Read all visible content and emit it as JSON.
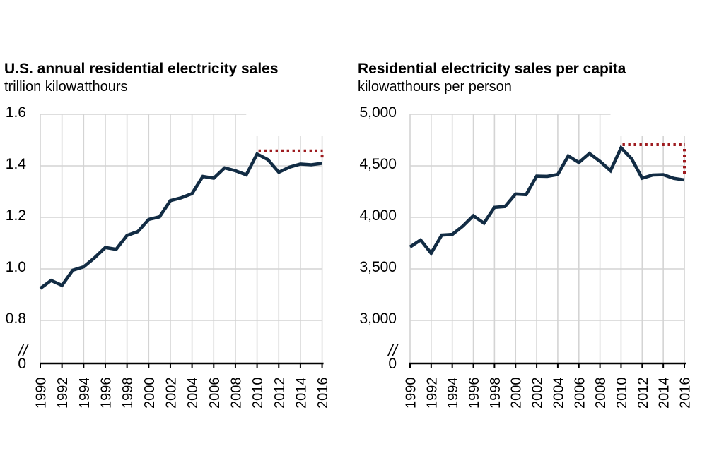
{
  "page": {
    "background_color": "#ffffff"
  },
  "colors": {
    "line": "#122c44",
    "annotation_dotted": "#9e1b1f",
    "grid": "#d4d4d4",
    "axis": "#000000",
    "text": "#000000"
  },
  "chart_data": [
    {
      "type": "line",
      "title": "U.S. annual residential electricity sales",
      "subtitle": "trillion kilowatthours",
      "xlabel": "",
      "ylabel": "trillion kilowatthours",
      "legend": "none",
      "grid": true,
      "ylim_display": [
        0.8,
        1.6
      ],
      "axis_break_symbol": "//",
      "y_zero_label": "0",
      "y_tick_values": [
        1.6,
        1.4,
        1.2,
        1.0,
        0.8
      ],
      "y_tick_labels": [
        "1.6",
        "1.4",
        "1.2",
        "1.0",
        "0.8"
      ],
      "x_tick_years": [
        1990,
        1992,
        1994,
        1996,
        1998,
        2000,
        2002,
        2004,
        2006,
        2008,
        2010,
        2012,
        2014,
        2016
      ],
      "x_tick_labels": [
        "1990",
        "1992",
        "1994",
        "1996",
        "1998",
        "2000",
        "2002",
        "2004",
        "2006",
        "2008",
        "2010",
        "2012",
        "2014",
        "2016"
      ],
      "x": [
        1990,
        1991,
        1992,
        1993,
        1994,
        1995,
        1996,
        1997,
        1998,
        1999,
        2000,
        2001,
        2002,
        2003,
        2004,
        2005,
        2006,
        2007,
        2008,
        2009,
        2010,
        2011,
        2012,
        2013,
        2014,
        2015,
        2016
      ],
      "values": [
        0.924,
        0.955,
        0.936,
        0.995,
        1.008,
        1.043,
        1.083,
        1.076,
        1.13,
        1.145,
        1.192,
        1.202,
        1.265,
        1.276,
        1.292,
        1.359,
        1.352,
        1.392,
        1.381,
        1.365,
        1.446,
        1.424,
        1.375,
        1.395,
        1.407,
        1.404,
        1.41
      ],
      "line_color": "#122c44",
      "annotation": {
        "style": "dotted-peak-reference",
        "color": "#9e1b1f",
        "from_year": 2010,
        "to_year": 2016
      }
    },
    {
      "type": "line",
      "title": "Residential electricity sales per capita",
      "subtitle": "kilowatthours per person",
      "xlabel": "",
      "ylabel": "kilowatthours per person",
      "legend": "none",
      "grid": true,
      "ylim_display": [
        3000,
        5000
      ],
      "axis_break_symbol": "//",
      "y_zero_label": "0",
      "y_tick_values": [
        5000,
        4500,
        4000,
        3500,
        3000
      ],
      "y_tick_labels": [
        "5,000",
        "4,500",
        "4,000",
        "3,500",
        "3,000"
      ],
      "x_tick_years": [
        1990,
        1992,
        1994,
        1996,
        1998,
        2000,
        2002,
        2004,
        2006,
        2008,
        2010,
        2012,
        2014,
        2016
      ],
      "x_tick_labels": [
        "1990",
        "1992",
        "1994",
        "1996",
        "1998",
        "2000",
        "2002",
        "2004",
        "2006",
        "2008",
        "2010",
        "2012",
        "2014",
        "2016"
      ],
      "x": [
        1990,
        1991,
        1992,
        1993,
        1994,
        1995,
        1996,
        1997,
        1998,
        1999,
        2000,
        2001,
        2002,
        2003,
        2004,
        2005,
        2006,
        2007,
        2008,
        2009,
        2010,
        2011,
        2012,
        2013,
        2014,
        2015,
        2016
      ],
      "values": [
        3713,
        3780,
        3652,
        3828,
        3834,
        3915,
        4016,
        3944,
        4097,
        4105,
        4227,
        4221,
        4400,
        4398,
        4416,
        4596,
        4532,
        4620,
        4544,
        4453,
        4675,
        4568,
        4380,
        4411,
        4414,
        4378,
        4363
      ],
      "line_color": "#122c44",
      "annotation": {
        "style": "dotted-peak-reference",
        "color": "#9e1b1f",
        "from_year": 2010,
        "to_year": 2016
      }
    }
  ]
}
